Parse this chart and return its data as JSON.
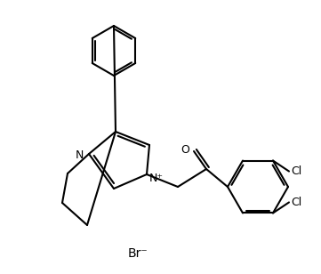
{
  "bg_color": "#ffffff",
  "line_color": "#000000",
  "line_width": 1.5,
  "font_size": 9,
  "br_label": "Br⁻",
  "n_plus_label": "N⁺",
  "o_label": "O",
  "cl_label": "Cl",
  "n_label": "N"
}
